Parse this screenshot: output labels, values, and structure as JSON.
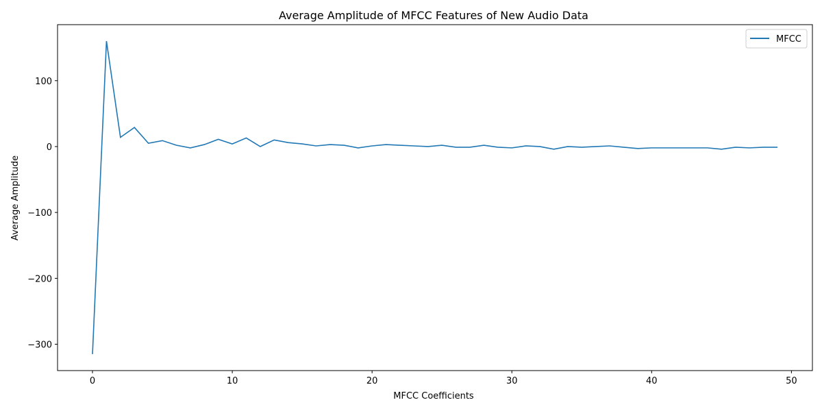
{
  "chart_data": {
    "type": "line",
    "title": "Average Amplitude of MFCC Features of New Audio Data",
    "xlabel": "MFCC Coefficients",
    "ylabel": "Average Amplitude",
    "xlim": [
      -2.5,
      51.5
    ],
    "ylim": [
      -340,
      185
    ],
    "xticks": [
      0,
      10,
      20,
      30,
      40,
      50
    ],
    "yticks": [
      -300,
      -200,
      -100,
      0,
      100
    ],
    "grid": false,
    "legend_position": "top-right",
    "colors": {
      "series": "#1f77b4"
    },
    "series": [
      {
        "name": "MFCC",
        "x": [
          0,
          1,
          2,
          3,
          4,
          5,
          6,
          7,
          8,
          9,
          10,
          11,
          12,
          13,
          14,
          15,
          16,
          17,
          18,
          19,
          20,
          21,
          22,
          23,
          24,
          25,
          26,
          27,
          28,
          29,
          30,
          31,
          32,
          33,
          34,
          35,
          36,
          37,
          38,
          39,
          40,
          41,
          42,
          43,
          44,
          45,
          46,
          47,
          48,
          49
        ],
        "values": [
          -315,
          160,
          14,
          29,
          5,
          9,
          2,
          -2,
          3,
          11,
          4,
          13,
          0,
          10,
          6,
          4,
          1,
          3,
          2,
          -2,
          1,
          3,
          2,
          1,
          0,
          2,
          -1,
          -1,
          2,
          -1,
          -2,
          1,
          0,
          -4,
          0,
          -1,
          0,
          1,
          -1,
          -3,
          -2,
          -2,
          -2,
          -2,
          -2,
          -4,
          -1,
          -2,
          -1,
          -1
        ]
      }
    ]
  }
}
